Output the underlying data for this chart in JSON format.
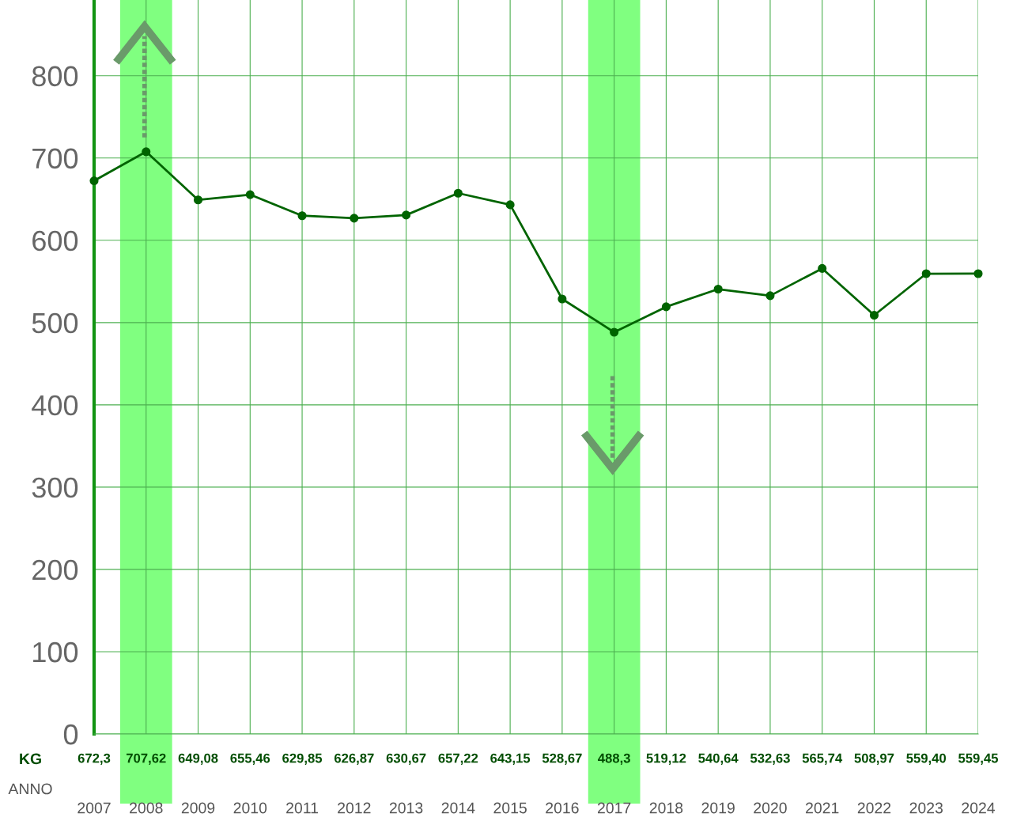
{
  "chart_data": {
    "type": "line",
    "categories": [
      "2007",
      "2008",
      "2009",
      "2010",
      "2011",
      "2012",
      "2013",
      "2014",
      "2015",
      "2016",
      "2017",
      "2018",
      "2019",
      "2020",
      "2021",
      "2022",
      "2023",
      "2024"
    ],
    "series": [
      {
        "color": "#006400",
        "values": [
          672.3,
          707.62,
          649.08,
          655.46,
          629.85,
          626.87,
          630.67,
          657.22,
          643.15,
          528.67,
          488.3,
          519.12,
          540.64,
          532.63,
          565.74,
          508.97,
          559.4,
          559.45
        ],
        "value_labels": [
          "672,3",
          "707,62",
          "649,08",
          "655,46",
          "629,85",
          "626,87",
          "630,67",
          "657,22",
          "643,15",
          "528,67",
          "488,3",
          "519,12",
          "540,64",
          "532,63",
          "565,74",
          "508,97",
          "559,40",
          "559,45"
        ]
      }
    ],
    "ylim": [
      0,
      892
    ],
    "yticks": [
      0,
      100,
      200,
      300,
      400,
      500,
      600,
      700,
      800
    ],
    "grid": true,
    "marker": "circle",
    "line_style": "solid",
    "bands": [
      {
        "axis": "x",
        "from": "2008",
        "to": "2008",
        "color": "#80ff80"
      },
      {
        "axis": "x",
        "from": "2017",
        "to": "2017",
        "color": "#80ff80"
      }
    ],
    "annotations": [
      "KG",
      "ANNO"
    ]
  }
}
